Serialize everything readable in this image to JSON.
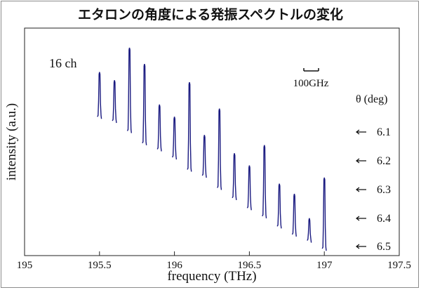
{
  "chart_data": {
    "type": "line",
    "title": "エタロンの角度による発振スペクトルの変化",
    "xlabel": "frequency (THz)",
    "ylabel": "intensity (a.u.)",
    "xlim": [
      195,
      197.5
    ],
    "x_ticks": [
      "195",
      "195.5",
      "196",
      "196.5",
      "197",
      "197.5"
    ],
    "grid": false,
    "annotation_channels": "16 ch",
    "scale_bar_label": "100GHz",
    "scale_bar_width_ghz": 100,
    "angle_header": "θ (deg)",
    "angle_labels": [
      "6.1",
      "6.2",
      "6.3",
      "6.4",
      "6.5"
    ],
    "line_color": "#1a1a80",
    "peaks": [
      {
        "x": 195.5,
        "h": 0.88,
        "b": 0.66
      },
      {
        "x": 195.6,
        "h": 0.84,
        "b": 0.64
      },
      {
        "x": 195.7,
        "h": 1.0,
        "b": 0.59
      },
      {
        "x": 195.8,
        "h": 0.92,
        "b": 0.53
      },
      {
        "x": 195.9,
        "h": 0.72,
        "b": 0.5
      },
      {
        "x": 196.0,
        "h": 0.66,
        "b": 0.46
      },
      {
        "x": 196.1,
        "h": 0.83,
        "b": 0.4
      },
      {
        "x": 196.2,
        "h": 0.57,
        "b": 0.37
      },
      {
        "x": 196.3,
        "h": 0.7,
        "b": 0.31
      },
      {
        "x": 196.4,
        "h": 0.48,
        "b": 0.26
      },
      {
        "x": 196.5,
        "h": 0.42,
        "b": 0.21
      },
      {
        "x": 196.6,
        "h": 0.52,
        "b": 0.17
      },
      {
        "x": 196.7,
        "h": 0.33,
        "b": 0.12
      },
      {
        "x": 196.8,
        "h": 0.28,
        "b": 0.08
      },
      {
        "x": 196.9,
        "h": 0.16,
        "b": 0.05
      },
      {
        "x": 197.0,
        "h": 0.36,
        "b": 0.01
      }
    ]
  }
}
